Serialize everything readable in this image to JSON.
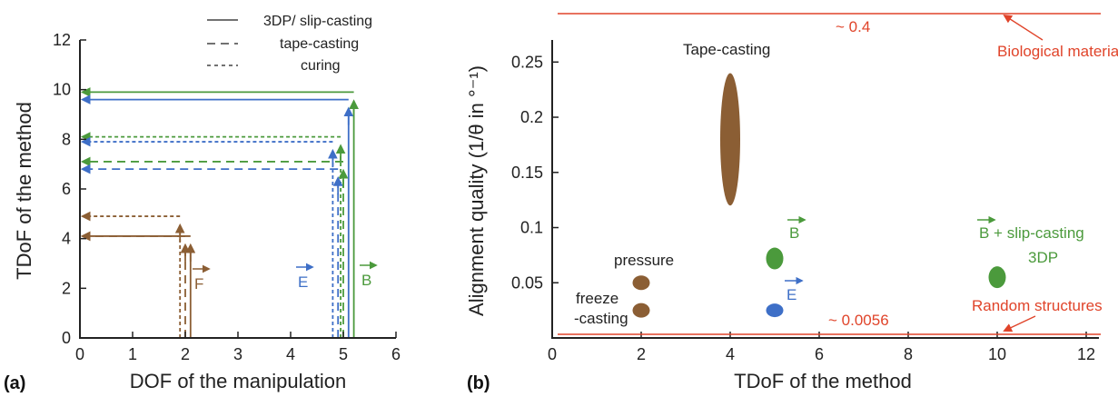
{
  "colors": {
    "brown": "#8B5E34",
    "blue": "#3E6FC7",
    "green": "#4B9A3C",
    "red": "#E0442A"
  },
  "chart_data": [
    {
      "panel": "(a)",
      "type": "line",
      "xlabel": "DOF of the manipulation",
      "ylabel": "TDoF of the method",
      "xlim": [
        0,
        6
      ],
      "ylim": [
        0,
        12
      ],
      "xticks": [
        "0",
        "1",
        "2",
        "3",
        "4",
        "5",
        "6"
      ],
      "yticks": [
        "0",
        "2",
        "4",
        "6",
        "8",
        "10",
        "12"
      ],
      "legend": [
        {
          "label": "3DP/ slip-casting",
          "style": "solid"
        },
        {
          "label": "tape-casting",
          "style": "dashed"
        },
        {
          "label": "curing",
          "style": "dotted"
        }
      ],
      "field_labels": [
        {
          "text": "F",
          "color": "brown"
        },
        {
          "text": "E",
          "color": "blue"
        },
        {
          "text": "B",
          "color": "green"
        }
      ],
      "corner_lines": [
        {
          "color": "green",
          "style": "solid",
          "x": 5.2,
          "y": 9.9
        },
        {
          "color": "blue",
          "style": "solid",
          "x": 5.1,
          "y": 9.6
        },
        {
          "color": "green",
          "style": "dotted",
          "x": 4.95,
          "y": 8.1
        },
        {
          "color": "blue",
          "style": "dotted",
          "x": 4.8,
          "y": 7.9
        },
        {
          "color": "green",
          "style": "dashed",
          "x": 5.0,
          "y": 7.1
        },
        {
          "color": "blue",
          "style": "dashed",
          "x": 4.9,
          "y": 6.8
        },
        {
          "color": "brown",
          "style": "dotted",
          "x": 1.9,
          "y": 4.9
        },
        {
          "color": "brown",
          "style": "dashed",
          "x": 2.0,
          "y": 4.1
        },
        {
          "color": "brown",
          "style": "solid",
          "x": 2.1,
          "y": 4.1
        }
      ]
    },
    {
      "panel": "(b)",
      "type": "scatter",
      "xlabel": "TDoF of the method",
      "ylabel": "Alignment quality (1/θ in °⁻¹)",
      "xlim": [
        0,
        12
      ],
      "ylim": [
        0,
        0.27
      ],
      "xticks": [
        "0",
        "2",
        "4",
        "6",
        "8",
        "10",
        "12"
      ],
      "yticks": [
        "0.05",
        "0.1",
        "0.15",
        "0.2",
        "0.25"
      ],
      "points": [
        {
          "label": "pressure",
          "x": 2,
          "y": 0.05,
          "color": "brown"
        },
        {
          "label": "freeze\n-casting",
          "x": 2,
          "y": 0.025,
          "color": "brown"
        },
        {
          "label": "Tape-casting",
          "x": 4,
          "y": 0.18,
          "y_min": 0.12,
          "y_max": 0.24,
          "color": "brown"
        },
        {
          "label": "B",
          "x": 5,
          "y": 0.072,
          "color": "green"
        },
        {
          "label": "E",
          "x": 5,
          "y": 0.025,
          "color": "blue"
        },
        {
          "label": "B + slip-casting\n3DP",
          "x": 10,
          "y": 0.055,
          "color": "green"
        }
      ],
      "reference_lines": [
        {
          "value_label": "~ 0.4",
          "name": "Biological materials",
          "color": "red"
        },
        {
          "value_label": "~ 0.0056",
          "name": "Random structures",
          "color": "red"
        }
      ]
    }
  ]
}
